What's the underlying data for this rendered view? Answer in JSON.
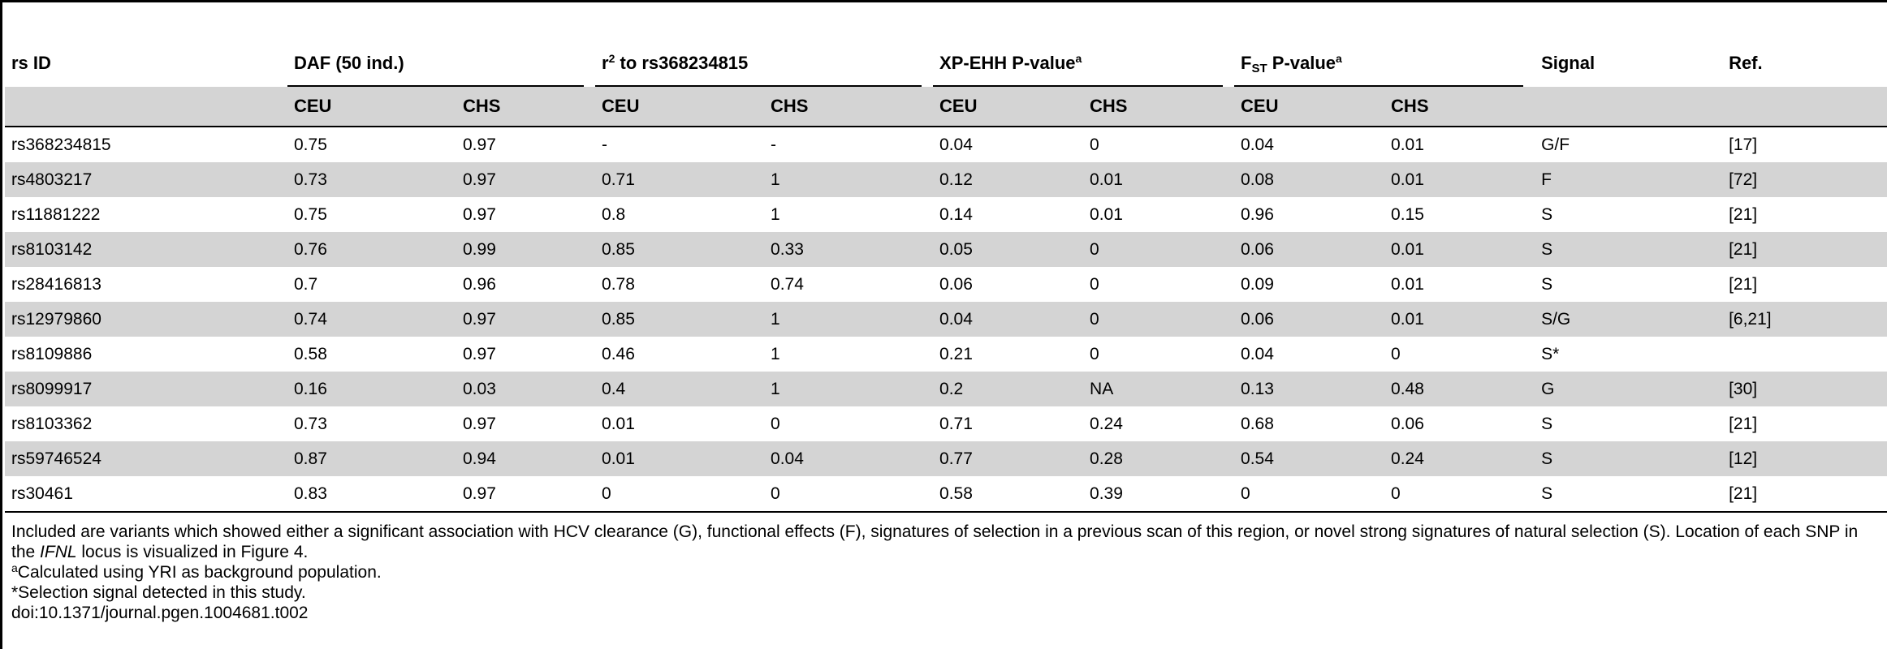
{
  "header": {
    "rs_id": "rs ID",
    "daf": "DAF (50 ind.)",
    "r2_prefix": "r",
    "r2_sup": "2",
    "r2_suffix": " to rs368234815",
    "xpehh": "XP-EHH P-value",
    "xpehh_sup": "a",
    "fst_prefix": "F",
    "fst_sub": "ST",
    "fst_suffix": " P-value",
    "fst_sup": "a",
    "signal": "Signal",
    "ref": "Ref.",
    "sub_ceu": "CEU",
    "sub_chs": "CHS"
  },
  "rows": [
    {
      "rs": "rs368234815",
      "daf_ceu": "0.75",
      "daf_chs": "0.97",
      "r2_ceu": "-",
      "r2_chs": "-",
      "xp_ceu": "0.04",
      "xp_chs": "0",
      "fst_ceu": "0.04",
      "fst_chs": "0.01",
      "signal": "G/F",
      "ref": "[17]"
    },
    {
      "rs": "rs4803217",
      "daf_ceu": "0.73",
      "daf_chs": "0.97",
      "r2_ceu": "0.71",
      "r2_chs": "1",
      "xp_ceu": "0.12",
      "xp_chs": "0.01",
      "fst_ceu": "0.08",
      "fst_chs": "0.01",
      "signal": "F",
      "ref": "[72]"
    },
    {
      "rs": "rs11881222",
      "daf_ceu": "0.75",
      "daf_chs": "0.97",
      "r2_ceu": "0.8",
      "r2_chs": "1",
      "xp_ceu": "0.14",
      "xp_chs": "0.01",
      "fst_ceu": "0.96",
      "fst_chs": "0.15",
      "signal": "S",
      "ref": "[21]"
    },
    {
      "rs": "rs8103142",
      "daf_ceu": "0.76",
      "daf_chs": "0.99",
      "r2_ceu": "0.85",
      "r2_chs": "0.33",
      "xp_ceu": "0.05",
      "xp_chs": "0",
      "fst_ceu": "0.06",
      "fst_chs": "0.01",
      "signal": "S",
      "ref": "[21]"
    },
    {
      "rs": "rs28416813",
      "daf_ceu": "0.7",
      "daf_chs": "0.96",
      "r2_ceu": "0.78",
      "r2_chs": "0.74",
      "xp_ceu": "0.06",
      "xp_chs": "0",
      "fst_ceu": "0.09",
      "fst_chs": "0.01",
      "signal": "S",
      "ref": "[21]"
    },
    {
      "rs": "rs12979860",
      "daf_ceu": "0.74",
      "daf_chs": "0.97",
      "r2_ceu": "0.85",
      "r2_chs": "1",
      "xp_ceu": "0.04",
      "xp_chs": "0",
      "fst_ceu": "0.06",
      "fst_chs": "0.01",
      "signal": "S/G",
      "ref": "[6,21]"
    },
    {
      "rs": "rs8109886",
      "daf_ceu": "0.58",
      "daf_chs": "0.97",
      "r2_ceu": "0.46",
      "r2_chs": "1",
      "xp_ceu": "0.21",
      "xp_chs": "0",
      "fst_ceu": "0.04",
      "fst_chs": "0",
      "signal": "S*",
      "ref": ""
    },
    {
      "rs": "rs8099917",
      "daf_ceu": "0.16",
      "daf_chs": "0.03",
      "r2_ceu": "0.4",
      "r2_chs": "1",
      "xp_ceu": "0.2",
      "xp_chs": "NA",
      "fst_ceu": "0.13",
      "fst_chs": "0.48",
      "signal": "G",
      "ref": "[30]"
    },
    {
      "rs": "rs8103362",
      "daf_ceu": "0.73",
      "daf_chs": "0.97",
      "r2_ceu": "0.01",
      "r2_chs": "0",
      "xp_ceu": "0.71",
      "xp_chs": "0.24",
      "fst_ceu": "0.68",
      "fst_chs": "0.06",
      "signal": "S",
      "ref": "[21]"
    },
    {
      "rs": "rs59746524",
      "daf_ceu": "0.87",
      "daf_chs": "0.94",
      "r2_ceu": "0.01",
      "r2_chs": "0.04",
      "xp_ceu": "0.77",
      "xp_chs": "0.28",
      "fst_ceu": "0.54",
      "fst_chs": "0.24",
      "signal": "S",
      "ref": "[12]"
    },
    {
      "rs": "rs30461",
      "daf_ceu": "0.83",
      "daf_chs": "0.97",
      "r2_ceu": "0",
      "r2_chs": "0",
      "xp_ceu": "0.58",
      "xp_chs": "0.39",
      "fst_ceu": "0",
      "fst_chs": "0",
      "signal": "S",
      "ref": "[21]"
    }
  ],
  "footnotes": {
    "note_main_before": "Included are variants which showed either a significant association with HCV clearance (G), functional effects (F), signatures of selection in a previous scan of this region, or novel strong signatures of natural selection (S). Location of each SNP in the ",
    "note_main_italic": "IFNL",
    "note_main_after": " locus is visualized in Figure 4.",
    "note_a_mark": "a",
    "note_a_text": "Calculated using YRI as background population.",
    "note_star": "*Selection signal detected in this study.",
    "doi": "doi:10.1371/journal.pgen.1004681.t002"
  }
}
